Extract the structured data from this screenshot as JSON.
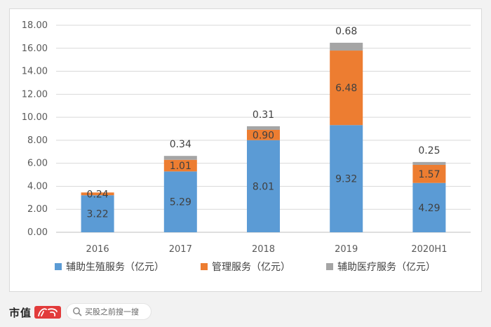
{
  "chart_data": {
    "type": "bar",
    "stacked": true,
    "categories": [
      "2016",
      "2017",
      "2018",
      "2019",
      "2020H1"
    ],
    "series": [
      {
        "name": "辅助生殖服务（亿元）",
        "color": "#5b9bd5",
        "values": [
          3.22,
          5.29,
          8.01,
          9.32,
          4.29
        ]
      },
      {
        "name": "管理服务（亿元）",
        "color": "#ed7d31",
        "values": [
          0.24,
          1.01,
          0.9,
          6.48,
          1.57
        ]
      },
      {
        "name": "辅助医疗服务（亿元）",
        "color": "#a5a5a5",
        "values": [
          0.0,
          0.34,
          0.31,
          0.68,
          0.25
        ]
      }
    ],
    "data_labels": [
      [
        "3.22",
        "5.29",
        "8.01",
        "9.32",
        "4.29"
      ],
      [
        "0.24",
        "1.01",
        "0.90",
        "6.48",
        "1.57"
      ],
      [
        "",
        "0.34",
        "0.31",
        "0.68",
        "0.25"
      ]
    ],
    "y_ticks": [
      "0.00",
      "2.00",
      "4.00",
      "6.00",
      "8.00",
      "10.00",
      "12.00",
      "14.00",
      "16.00",
      "18.00"
    ],
    "ylim": [
      0,
      18
    ],
    "grid": true,
    "legend_position": "bottom"
  },
  "footer": {
    "brand": "市值",
    "brand_seal_text": "风云",
    "search_text": "买股之前搜一搜",
    "search_icon": "search-icon"
  }
}
